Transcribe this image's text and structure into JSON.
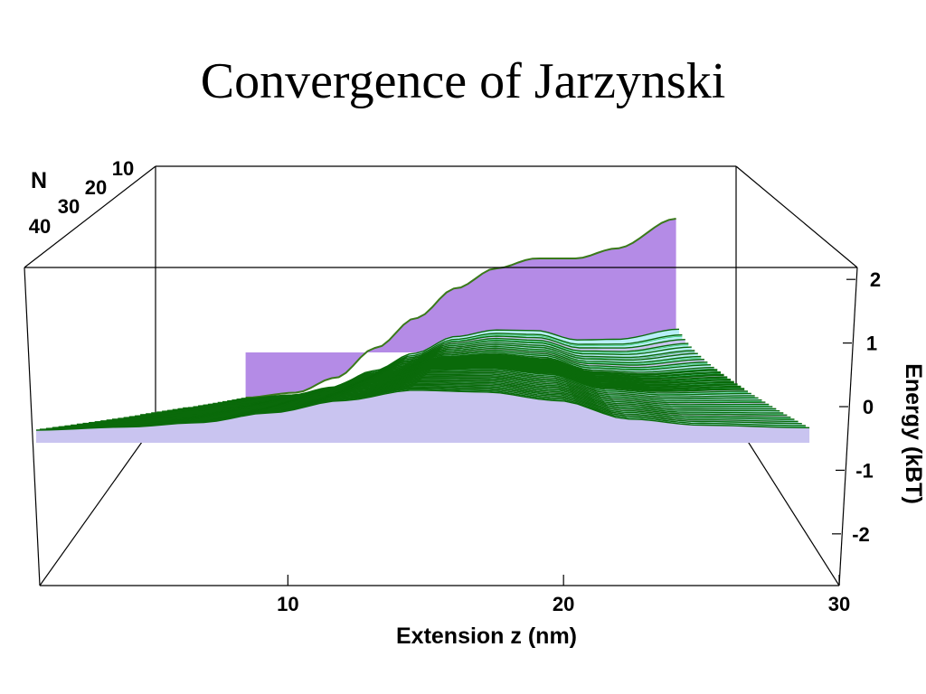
{
  "slide": {
    "title": "Convergence of Jarzynski"
  },
  "chart_data": {
    "type": "surface",
    "title": "",
    "xlabel": "Extension z (nm)",
    "ylabel": "Energy (kBT)",
    "zlabel": "N",
    "x_ticks": [
      "10",
      "20",
      "30"
    ],
    "y_ticks": [
      "2",
      "1",
      "0",
      "-1",
      "-2"
    ],
    "n_ticks": [
      "10",
      "20",
      "30",
      "40"
    ],
    "xlim": [
      1,
      30
    ],
    "ylim": [
      -2.5,
      2.5
    ],
    "n_range": [
      1,
      40
    ],
    "x": [
      5.5,
      8,
      10,
      12,
      14,
      16,
      18,
      20,
      22,
      24,
      27
    ],
    "profile_N1": [
      0.0,
      0.1,
      0.4,
      1.0,
      1.6,
      2.2,
      2.6,
      2.8,
      2.8,
      3.0,
      3.6
    ],
    "profile_converged": [
      0.0,
      0.05,
      0.12,
      0.28,
      0.48,
      0.65,
      0.62,
      0.48,
      0.18,
      0.08,
      0.04
    ],
    "series_count": 40,
    "colors": {
      "first_trace_fill": "#b48be6",
      "first_trace_edge": "#3a7a1a",
      "surface_fill": "#b8eef8",
      "surface_band": "#c9c4f0",
      "trace_line": "#0a6a0a",
      "trace_highlight": "#38d07a"
    }
  }
}
